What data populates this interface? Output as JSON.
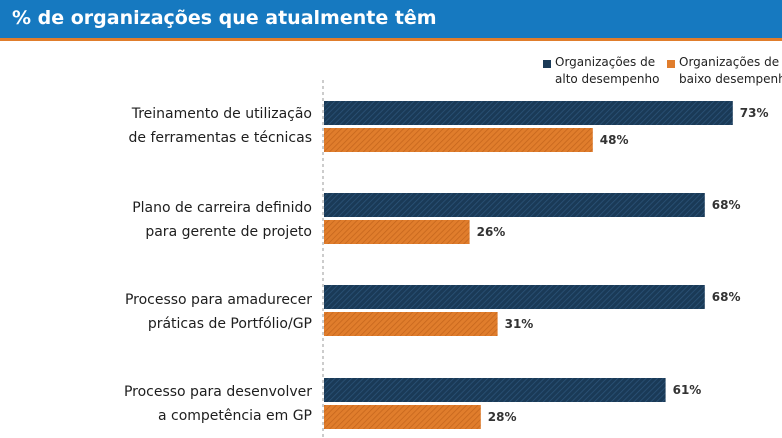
{
  "header": {
    "title": "% de organizações que atualmente têm"
  },
  "legend": [
    {
      "label": "Organizações de\nalto desempenho",
      "color": "#1a3a57"
    },
    {
      "label": "Organizações de\nbaixo desempenho",
      "color": "#e07d2c"
    }
  ],
  "colors": {
    "header_bg": "#1679c0",
    "header_stripe": "#e07d2c",
    "high": "#1a3a57",
    "low": "#e07d2c"
  },
  "chart_data": {
    "type": "bar",
    "orientation": "horizontal",
    "categories": [
      "Treinamento de utilização\nde ferramentas e técnicas",
      "Plano de carreira definido\npara gerente de projeto",
      "Processo para amadurecer\npráticas de Portfólio/GP",
      "Processo para desenvolver\na competência em GP"
    ],
    "series": [
      {
        "name": "Organizações de alto desempenho",
        "values": [
          73,
          68,
          68,
          61
        ],
        "labels": [
          "73%",
          "68%",
          "68%",
          "61%"
        ]
      },
      {
        "name": "Organizações de baixo desempenho",
        "values": [
          48,
          26,
          31,
          28
        ],
        "labels": [
          "48%",
          "26%",
          "31%",
          "28%"
        ]
      }
    ],
    "xlim": [
      0,
      100
    ],
    "legend_position": "top-right",
    "grid": false
  }
}
